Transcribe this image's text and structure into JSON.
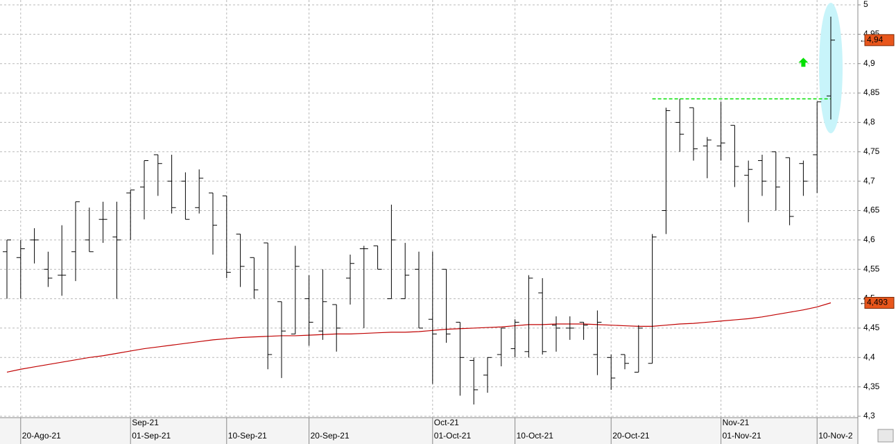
{
  "chart_data": {
    "type": "ohlc",
    "categories": [
      null,
      "20-Ago-21",
      null,
      null,
      null,
      null,
      null,
      null,
      null,
      "01-Sep-21",
      null,
      null,
      null,
      null,
      null,
      null,
      "10-Sep-21",
      null,
      null,
      null,
      null,
      null,
      "20-Sep-21",
      null,
      null,
      null,
      null,
      null,
      null,
      null,
      null,
      "01-Oct-21",
      null,
      null,
      null,
      null,
      null,
      "10-Oct-21",
      null,
      null,
      null,
      null,
      null,
      null,
      "20-Oct-21",
      null,
      null,
      null,
      null,
      null,
      null,
      null,
      "01-Nov-21",
      null,
      null,
      null,
      null,
      null,
      null,
      "10-Nov-2",
      null
    ],
    "month_labels": [
      null,
      null,
      null,
      null,
      null,
      null,
      null,
      null,
      null,
      "Sep-21",
      null,
      null,
      null,
      null,
      null,
      null,
      null,
      null,
      null,
      null,
      null,
      null,
      null,
      null,
      null,
      null,
      null,
      null,
      null,
      null,
      null,
      "Oct-21",
      null,
      null,
      null,
      null,
      null,
      null,
      null,
      null,
      null,
      null,
      null,
      null,
      null,
      null,
      null,
      null,
      null,
      null,
      null,
      null,
      "Nov-21",
      null,
      null,
      null,
      null,
      null,
      null,
      null,
      null
    ],
    "open": [
      4.58,
      4.57,
      4.6,
      4.55,
      4.54,
      4.58,
      4.6,
      4.635,
      4.605,
      4.68,
      4.69,
      4.745,
      4.7,
      4.7,
      4.655,
      4.68,
      4.675,
      4.61,
      4.57,
      4.595,
      4.495,
      4.44,
      4.5,
      4.445,
      4.49,
      4.535,
      4.585,
      4.59,
      4.5,
      4.5,
      4.55,
      4.465,
      4.55,
      4.46,
      4.395,
      4.37,
      4.405,
      4.415,
      4.41,
      4.51,
      4.455,
      4.45,
      4.46,
      4.405,
      4.4,
      4.405,
      4.375,
      4.39,
      4.65,
      4.8,
      4.825,
      4.76,
      4.76,
      4.795,
      4.71,
      4.735,
      4.75,
      4.74,
      4.73,
      4.745,
      4.845
    ],
    "high": [
      4.6,
      4.6,
      4.62,
      4.58,
      4.625,
      4.665,
      4.655,
      4.665,
      4.665,
      4.685,
      4.735,
      4.745,
      4.745,
      4.715,
      4.72,
      4.68,
      4.675,
      4.61,
      4.57,
      4.595,
      4.495,
      4.59,
      4.54,
      4.55,
      4.49,
      4.575,
      4.59,
      4.59,
      4.66,
      4.595,
      4.58,
      4.58,
      4.55,
      4.46,
      4.4,
      4.4,
      4.45,
      4.465,
      4.54,
      4.535,
      4.47,
      4.47,
      4.46,
      4.48,
      4.405,
      4.405,
      4.455,
      4.61,
      4.825,
      4.84,
      4.825,
      4.775,
      4.835,
      4.795,
      4.735,
      4.745,
      4.75,
      4.74,
      4.735,
      4.835,
      4.98
    ],
    "low": [
      4.5,
      4.5,
      4.56,
      4.52,
      4.505,
      4.53,
      4.58,
      4.595,
      4.5,
      4.6,
      4.635,
      4.675,
      4.645,
      4.635,
      4.645,
      4.575,
      4.535,
      4.52,
      4.5,
      4.38,
      4.365,
      4.44,
      4.42,
      4.43,
      4.41,
      4.49,
      4.45,
      4.55,
      4.5,
      4.5,
      4.45,
      4.355,
      4.425,
      4.335,
      4.32,
      4.34,
      4.385,
      4.4,
      4.4,
      4.405,
      4.41,
      4.43,
      4.43,
      4.37,
      4.345,
      4.38,
      4.375,
      4.39,
      4.61,
      4.75,
      4.735,
      4.705,
      4.735,
      4.69,
      4.63,
      4.675,
      4.65,
      4.625,
      4.675,
      4.68,
      4.805
    ],
    "close": [
      4.6,
      4.585,
      4.6,
      4.535,
      4.54,
      4.665,
      4.58,
      4.635,
      4.6,
      4.685,
      4.735,
      4.73,
      4.655,
      4.635,
      4.705,
      4.625,
      4.545,
      4.555,
      4.515,
      4.405,
      4.445,
      4.555,
      4.46,
      4.495,
      4.45,
      4.56,
      4.585,
      4.55,
      4.6,
      4.54,
      4.45,
      4.44,
      4.44,
      4.4,
      4.345,
      4.4,
      4.45,
      4.46,
      4.535,
      4.41,
      4.45,
      4.45,
      4.455,
      4.46,
      4.365,
      4.39,
      4.45,
      4.605,
      4.82,
      4.78,
      4.755,
      4.77,
      4.765,
      4.725,
      4.72,
      4.7,
      4.69,
      4.64,
      4.7,
      4.835,
      4.94
    ],
    "moving_average": {
      "color": "#c00000",
      "values": [
        4.375,
        4.38,
        4.384,
        4.388,
        4.392,
        4.396,
        4.4,
        4.403,
        4.407,
        4.411,
        4.415,
        4.418,
        4.421,
        4.424,
        4.427,
        4.43,
        4.432,
        4.434,
        4.435,
        4.436,
        4.437,
        4.437,
        4.438,
        4.439,
        4.44,
        4.44,
        4.441,
        4.442,
        4.443,
        4.443,
        4.444,
        4.446,
        4.448,
        4.449,
        4.45,
        4.451,
        4.452,
        4.454,
        4.456,
        4.456,
        4.457,
        4.457,
        4.457,
        4.456,
        4.455,
        4.454,
        4.453,
        4.453,
        4.455,
        4.457,
        4.458,
        4.46,
        4.462,
        4.464,
        4.466,
        4.469,
        4.473,
        4.477,
        4.481,
        4.486,
        4.493
      ]
    },
    "close_label": "4,94",
    "ma_label": "4,493",
    "label_color": "#e8561c",
    "resistance": {
      "value": 4.84,
      "color": "#00e000"
    },
    "highlight_color": "#c8f4fa",
    "ylim": [
      4.3,
      5
    ],
    "yticks": [
      {
        "value": 4.3,
        "label": "4,3"
      },
      {
        "value": 4.35,
        "label": "4,35"
      },
      {
        "value": 4.4,
        "label": "4,4"
      },
      {
        "value": 4.45,
        "label": "4,45"
      },
      {
        "value": 4.5,
        "label": "4,5"
      },
      {
        "value": 4.55,
        "label": "4,55"
      },
      {
        "value": 4.6,
        "label": "4,6"
      },
      {
        "value": 4.65,
        "label": "4,65"
      },
      {
        "value": 4.7,
        "label": "4,7"
      },
      {
        "value": 4.75,
        "label": "4,75"
      },
      {
        "value": 4.8,
        "label": "4,8"
      },
      {
        "value": 4.85,
        "label": "4,85"
      },
      {
        "value": 4.9,
        "label": "4,9"
      },
      {
        "value": 4.95,
        "label": "4,95"
      },
      5
    ],
    "grid": true
  }
}
